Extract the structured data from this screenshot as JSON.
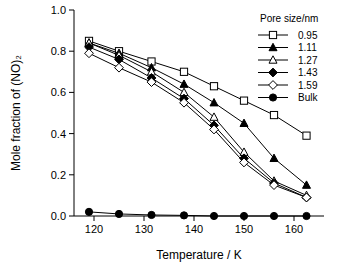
{
  "chart_data": {
    "type": "line",
    "x_label": "Temperature / K",
    "y_label": "Mole fraction of (NO)₂",
    "legend_title": "Pore size/nm",
    "legend": "top-right",
    "x": [
      119,
      125,
      131.5,
      138,
      144,
      150,
      156,
      162.5
    ],
    "xlim": [
      116,
      166
    ],
    "xticks": [
      120,
      130,
      140,
      150,
      160
    ],
    "ylim": [
      0,
      1
    ],
    "yticks": [
      {
        "value": 0,
        "label": "0.0"
      },
      {
        "value": 0.2,
        "label": "0.2"
      },
      {
        "value": 0.4,
        "label": "0.4"
      },
      {
        "value": 0.6,
        "label": "0.6"
      },
      {
        "value": 0.8,
        "label": "0.8"
      },
      {
        "value": 1,
        "label": "1.0"
      }
    ],
    "grid": false,
    "series": [
      {
        "name": "0.95",
        "color": "#000000",
        "marker": "square-open",
        "values": [
          0.85,
          0.8,
          0.75,
          0.7,
          0.63,
          0.56,
          0.49,
          0.39
        ]
      },
      {
        "name": "1.11",
        "color": "#000000",
        "marker": "triangle",
        "values": [
          0.84,
          0.79,
          0.72,
          0.64,
          0.55,
          0.45,
          0.28,
          0.15
        ]
      },
      {
        "name": "1.27",
        "color": "#000000",
        "marker": "triangle-open",
        "values": [
          0.84,
          0.78,
          0.7,
          0.6,
          0.48,
          0.31,
          0.17,
          0.1
        ]
      },
      {
        "name": "1.43",
        "color": "#000000",
        "marker": "diamond",
        "values": [
          0.82,
          0.76,
          0.67,
          0.57,
          0.44,
          0.28,
          0.16,
          0.09
        ]
      },
      {
        "name": "1.59",
        "color": "#000000",
        "marker": "diamond-open",
        "values": [
          0.79,
          0.72,
          0.65,
          0.55,
          0.42,
          0.26,
          0.15,
          0.09
        ]
      },
      {
        "name": "Bulk",
        "color": "#000000",
        "marker": "circle",
        "values": [
          0.02,
          0.01,
          0.005,
          0.003,
          0.0,
          0.0,
          0.0,
          0.0
        ]
      }
    ]
  }
}
